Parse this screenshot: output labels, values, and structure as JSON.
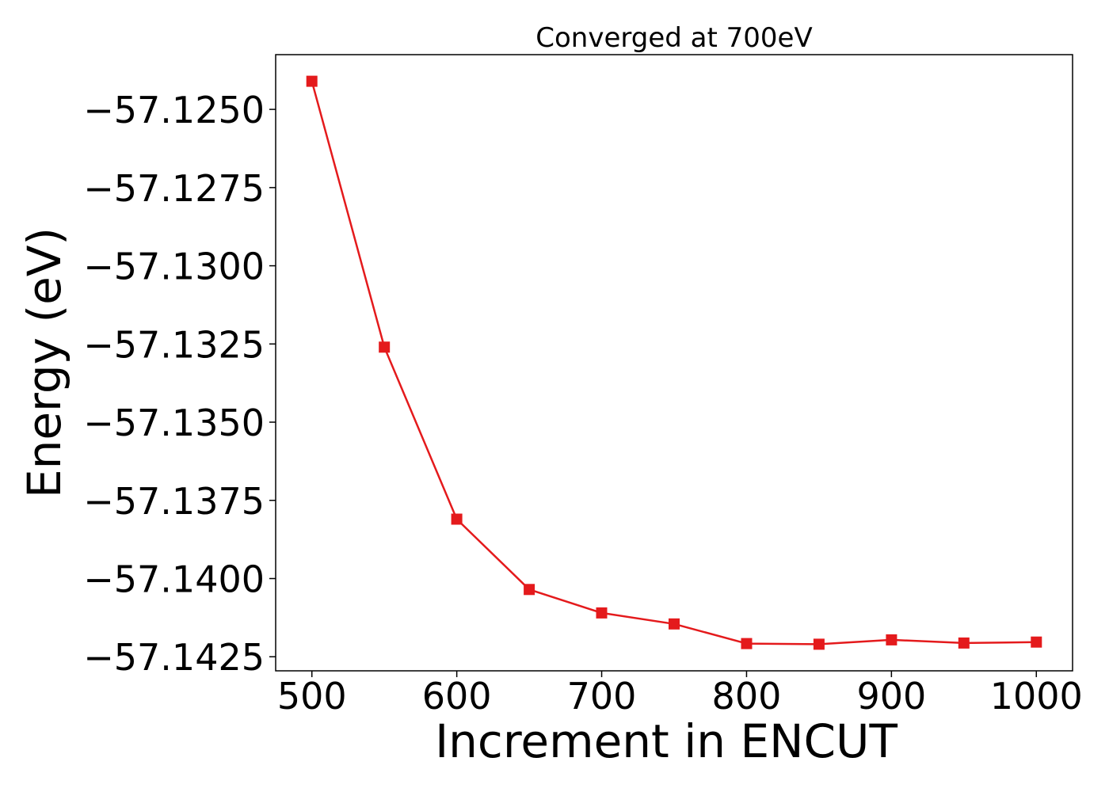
{
  "chart_data": {
    "type": "line",
    "title": "Converged at 700eV",
    "xlabel": "Increment in ENCUT",
    "ylabel": "Energy (eV)",
    "xlim": [
      475,
      1025
    ],
    "ylim": [
      -57.14295,
      -57.12325
    ],
    "xticks": [
      500,
      600,
      700,
      800,
      900,
      1000
    ],
    "xtick_labels": [
      "500",
      "600",
      "700",
      "800",
      "900",
      "1000"
    ],
    "yticks": [
      -57.125,
      -57.1275,
      -57.13,
      -57.1325,
      -57.135,
      -57.1375,
      -57.14,
      -57.1425
    ],
    "ytick_labels": [
      "−57.1250",
      "−57.1275",
      "−57.1300",
      "−57.1325",
      "−57.1350",
      "−57.1375",
      "−57.1400",
      "−57.1425"
    ],
    "grid": false,
    "series": [
      {
        "color": "#e41a1c",
        "marker": "square",
        "x": [
          500,
          550,
          600,
          650,
          700,
          750,
          800,
          850,
          900,
          950,
          1000
        ],
        "y": [
          -57.1241,
          -57.1326,
          -57.1381,
          -57.14035,
          -57.1411,
          -57.14145,
          -57.14208,
          -57.1421,
          -57.14196,
          -57.14206,
          -57.14203
        ]
      }
    ]
  }
}
